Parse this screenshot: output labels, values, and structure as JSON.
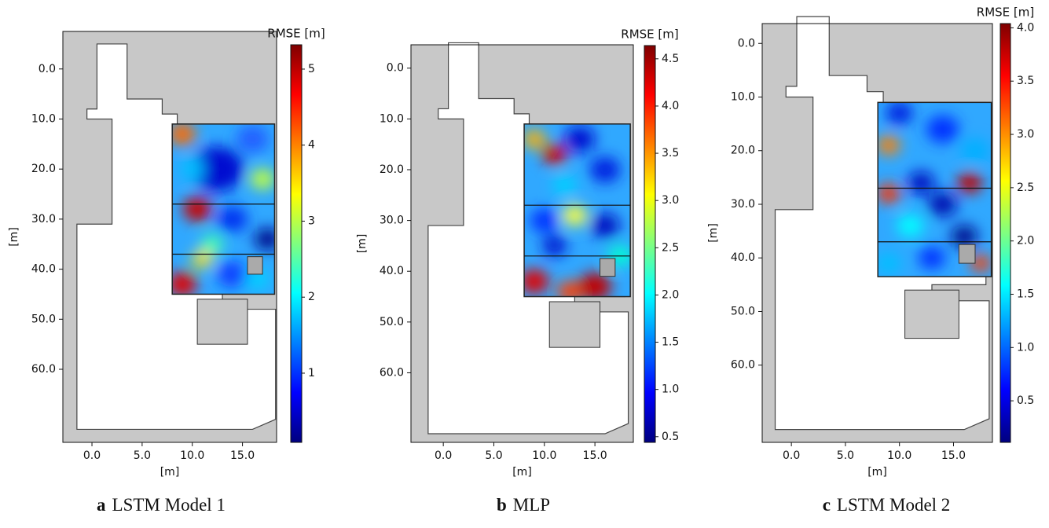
{
  "chart_data": [
    {
      "type": "heatmap",
      "caption_label": "a",
      "caption": "LSTM Model 1",
      "xlabel": "[m]",
      "ylabel": "[m]",
      "xlim": [
        -2.9,
        18.4
      ],
      "ylim": [
        74.6,
        -7.5
      ],
      "xticks": [
        {
          "value": 0,
          "label": "0.0"
        },
        {
          "value": 5,
          "label": "5.0"
        },
        {
          "value": 10,
          "label": "10.0"
        },
        {
          "value": 15,
          "label": "15.0"
        }
      ],
      "yticks": [
        {
          "value": 0,
          "label": "0.0"
        },
        {
          "value": 10,
          "label": "10.0"
        },
        {
          "value": 20,
          "label": "20.0"
        },
        {
          "value": 30,
          "label": "30.0"
        },
        {
          "value": 40,
          "label": "40.0"
        },
        {
          "value": 50,
          "label": "50.0"
        },
        {
          "value": 60,
          "label": "60.0"
        }
      ],
      "colorbar": {
        "label": "RMSE [m]",
        "clim": [
          0.09,
          5.32
        ],
        "ticks": [
          1,
          2,
          3,
          4,
          5
        ]
      }
    },
    {
      "type": "heatmap",
      "caption_label": "b",
      "caption": "MLP",
      "xlabel": "[m]",
      "ylabel": "[m]",
      "xlim": [
        -3.2,
        18.8
      ],
      "ylim": [
        73.7,
        -4.6
      ],
      "xticks": [
        {
          "value": 0,
          "label": "0.0"
        },
        {
          "value": 5,
          "label": "5.0"
        },
        {
          "value": 10,
          "label": "10.0"
        },
        {
          "value": 15,
          "label": "15.0"
        }
      ],
      "yticks": [
        {
          "value": 0,
          "label": "0.0"
        },
        {
          "value": 10,
          "label": "10.0"
        },
        {
          "value": 20,
          "label": "20.0"
        },
        {
          "value": 30,
          "label": "30.0"
        },
        {
          "value": 40,
          "label": "40.0"
        },
        {
          "value": 50,
          "label": "50.0"
        },
        {
          "value": 60,
          "label": "60.0"
        }
      ],
      "colorbar": {
        "label": "RMSE [m]",
        "clim": [
          0.44,
          4.64
        ],
        "ticks": [
          0.5,
          {
            "value": 1,
            "label": "1.0"
          },
          1.5,
          {
            "value": 2,
            "label": "2.0"
          },
          2.5,
          {
            "value": 3,
            "label": "3.0"
          },
          3.5,
          {
            "value": 4,
            "label": "4.0"
          },
          4.5
        ]
      }
    },
    {
      "type": "heatmap",
      "caption_label": "c",
      "caption": "LSTM Model 2",
      "xlabel": "[m]",
      "ylabel": "[m]",
      "xlim": [
        -2.7,
        18.6
      ],
      "ylim": [
        74.4,
        -3.7
      ],
      "xticks": [
        {
          "value": 0,
          "label": "0.0"
        },
        {
          "value": 5,
          "label": "5.0"
        },
        {
          "value": 10,
          "label": "10.0"
        },
        {
          "value": 15,
          "label": "15.0"
        }
      ],
      "yticks": [
        {
          "value": 0,
          "label": "0.0"
        },
        {
          "value": 10,
          "label": "10.0"
        },
        {
          "value": 20,
          "label": "20.0"
        },
        {
          "value": 30,
          "label": "30.0"
        },
        {
          "value": 40,
          "label": "40.0"
        },
        {
          "value": 50,
          "label": "50.0"
        },
        {
          "value": 60,
          "label": "60.0"
        }
      ],
      "colorbar": {
        "label": "RMSE [m]",
        "clim": [
          0.11,
          4.04
        ],
        "ticks": [
          0.5,
          {
            "value": 1,
            "label": "1.0"
          },
          1.5,
          {
            "value": 2,
            "label": "2.0"
          },
          2.5,
          {
            "value": 3,
            "label": "3.0"
          },
          3.5,
          {
            "value": 4,
            "label": "4.0"
          }
        ]
      }
    }
  ]
}
